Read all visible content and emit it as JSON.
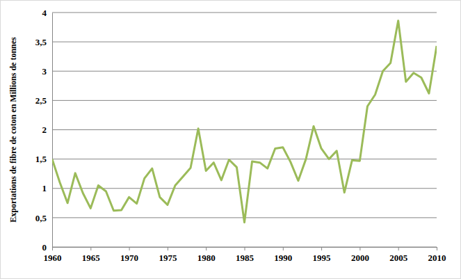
{
  "chart_data": {
    "type": "line",
    "y_label": "Exportations de fibre de coton en Millions de tonnes",
    "x": [
      1960,
      1961,
      1962,
      1963,
      1964,
      1965,
      1966,
      1967,
      1968,
      1969,
      1970,
      1971,
      1972,
      1973,
      1974,
      1975,
      1976,
      1977,
      1978,
      1979,
      1980,
      1981,
      1982,
      1983,
      1984,
      1985,
      1986,
      1987,
      1988,
      1989,
      1990,
      1991,
      1992,
      1993,
      1994,
      1995,
      1996,
      1997,
      1998,
      1999,
      2000,
      2001,
      2002,
      2003,
      2004,
      2005,
      2006,
      2007,
      2008,
      2009,
      2010
    ],
    "values": [
      1.5,
      1.1,
      0.75,
      1.26,
      0.92,
      0.66,
      1.05,
      0.95,
      0.62,
      0.63,
      0.85,
      0.74,
      1.17,
      1.34,
      0.85,
      0.72,
      1.05,
      1.2,
      1.35,
      2.02,
      1.3,
      1.44,
      1.14,
      1.49,
      1.36,
      0.42,
      1.46,
      1.44,
      1.34,
      1.68,
      1.7,
      1.45,
      1.13,
      1.5,
      2.06,
      1.68,
      1.5,
      1.64,
      0.93,
      1.48,
      1.47,
      2.4,
      2.6,
      3.0,
      3.14,
      3.86,
      2.82,
      2.97,
      2.89,
      2.62,
      3.43
    ],
    "color": "#9bbb59",
    "xlim": [
      1960,
      2010
    ],
    "xticks": [
      1960,
      1965,
      1970,
      1975,
      1980,
      1985,
      1990,
      1995,
      2000,
      2005,
      2010
    ],
    "ylim": [
      0,
      4
    ],
    "yticks": [
      0,
      {
        "value": 0.5,
        "label": "0,5"
      },
      1,
      {
        "value": 1.5,
        "label": "1,5"
      },
      2,
      {
        "value": 2.5,
        "label": "2,5"
      },
      3,
      {
        "value": 3.5,
        "label": "3,5"
      },
      4
    ],
    "grid": true
  }
}
